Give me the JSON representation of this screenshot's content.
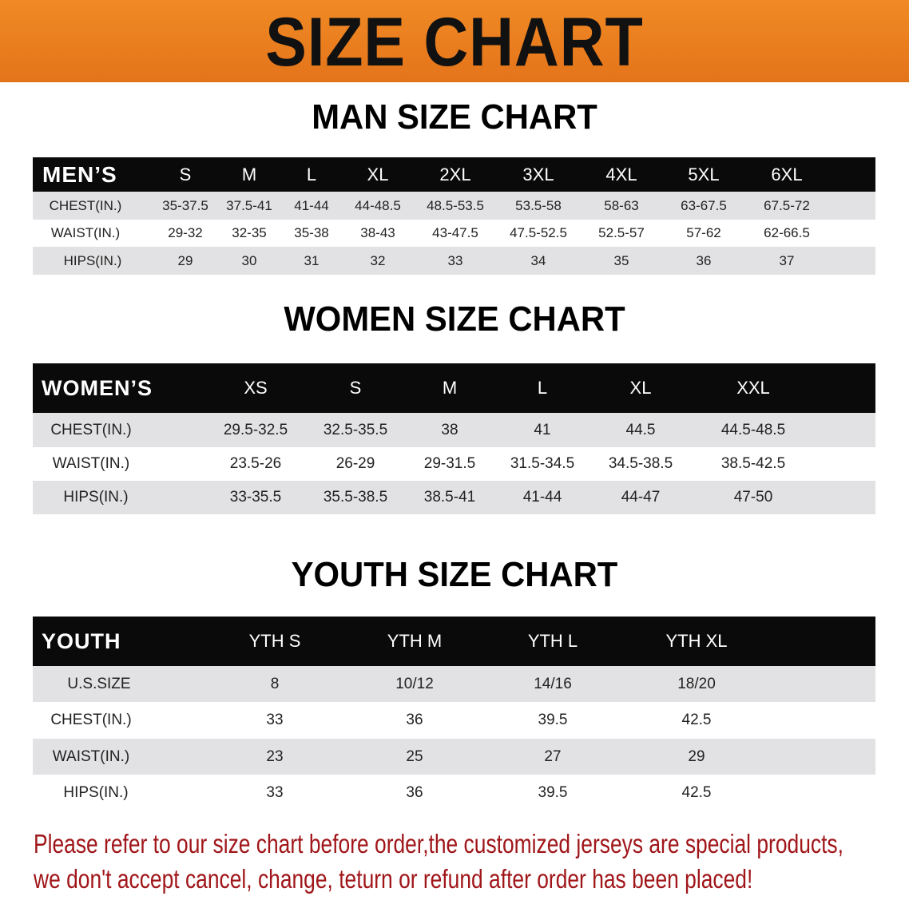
{
  "banner_title": "SIZE CHART",
  "men": {
    "title": "MAN SIZE CHART",
    "header": [
      "MEN’S",
      "S",
      "M",
      "L",
      "XL",
      "2XL",
      "3XL",
      "4XL",
      "5XL",
      "6XL"
    ],
    "rows": [
      [
        "CHEST(IN.)",
        "35-37.5",
        "37.5-41",
        "41-44",
        "44-48.5",
        "48.5-53.5",
        "53.5-58",
        "58-63",
        "63-67.5",
        "67.5-72"
      ],
      [
        "WAIST(IN.)",
        "29-32",
        "32-35",
        "35-38",
        "38-43",
        "43-47.5",
        "47.5-52.5",
        "52.5-57",
        "57-62",
        "62-66.5"
      ],
      [
        "HIPS(IN.)",
        "29",
        "30",
        "31",
        "32",
        "33",
        "34",
        "35",
        "36",
        "37"
      ]
    ]
  },
  "women": {
    "title": "WOMEN SIZE CHART",
    "header": [
      "WOMEN’S",
      "XS",
      "S",
      "M",
      "L",
      "XL",
      "XXL"
    ],
    "rows": [
      [
        "CHEST(IN.)",
        "29.5-32.5",
        "32.5-35.5",
        "38",
        "41",
        "44.5",
        "44.5-48.5"
      ],
      [
        "WAIST(IN.)",
        "23.5-26",
        "26-29",
        "29-31.5",
        "31.5-34.5",
        "34.5-38.5",
        "38.5-42.5"
      ],
      [
        "HIPS(IN.)",
        "33-35.5",
        "35.5-38.5",
        "38.5-41",
        "41-44",
        "44-47",
        "47-50"
      ]
    ]
  },
  "youth": {
    "title": "YOUTH SIZE CHART",
    "header": [
      "YOUTH",
      "YTH S",
      "YTH M",
      "YTH L",
      "YTH XL"
    ],
    "rows": [
      [
        "U.S.SIZE",
        "8",
        "10/12",
        "14/16",
        "18/20"
      ],
      [
        "CHEST(IN.)",
        "33",
        "36",
        "39.5",
        "42.5"
      ],
      [
        "WAIST(IN.)",
        "23",
        "25",
        "27",
        "29"
      ],
      [
        "HIPS(IN.)",
        "33",
        "36",
        "39.5",
        "42.5"
      ]
    ]
  },
  "footer": {
    "line1": "Please refer to our size chart before order,the customized jerseys are special products,",
    "line2": "we don't accept cancel, change, teturn or refund after order has been placed!"
  },
  "colors": {
    "banner": "#e87d1e",
    "header_row": "#0a0a0a",
    "stripe": "#e2e2e4",
    "notice": "#a0161a"
  }
}
